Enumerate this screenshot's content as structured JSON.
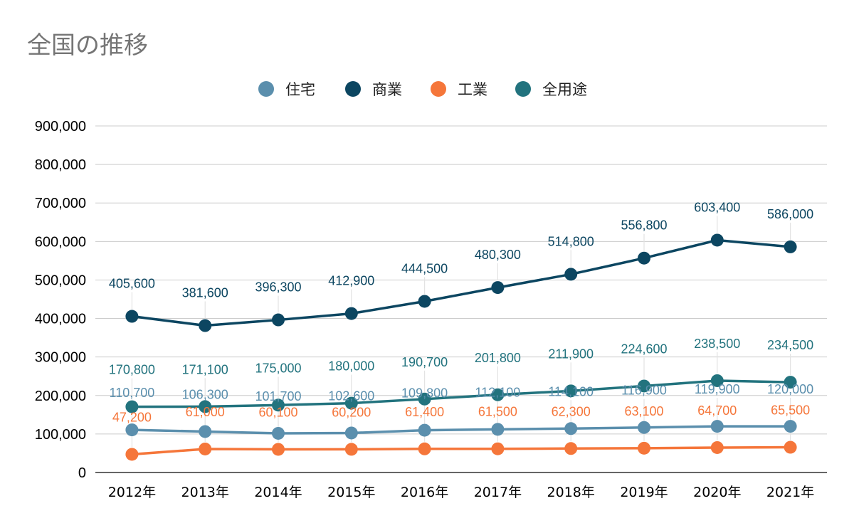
{
  "chart_data": {
    "type": "line",
    "title": "全国の推移",
    "xlabel": "",
    "ylabel": "",
    "categories": [
      "2012年",
      "2013年",
      "2014年",
      "2015年",
      "2016年",
      "2017年",
      "2018年",
      "2019年",
      "2020年",
      "2021年"
    ],
    "ylim": [
      0,
      900000
    ],
    "yticks": [
      "0",
      "100,000",
      "200,000",
      "300,000",
      "400,000",
      "500,000",
      "600,000",
      "700,000",
      "800,000",
      "900,000"
    ],
    "grid": true,
    "legend_position": "top",
    "series": [
      {
        "name": "住宅",
        "color": "#5b8fad",
        "values": [
          110700,
          106300,
          101700,
          102600,
          109800,
          112100,
          114100,
          116900,
          119900,
          120000
        ],
        "labels": [
          "110,700",
          "106,300",
          "101,700",
          "102,600",
          "109,800",
          "112,100",
          "114,100",
          "116,900",
          "119,900",
          "120,000"
        ]
      },
      {
        "name": "商業",
        "color": "#0c4661",
        "values": [
          405600,
          381600,
          396300,
          412900,
          444500,
          480300,
          514800,
          556800,
          603400,
          586000
        ],
        "labels": [
          "405,600",
          "381,600",
          "396,300",
          "412,900",
          "444,500",
          "480,300",
          "514,800",
          "556,800",
          "603,400",
          "586,000"
        ]
      },
      {
        "name": "工業",
        "color": "#f5763a",
        "values": [
          47200,
          61000,
          60100,
          60200,
          61400,
          61500,
          62300,
          63100,
          64700,
          65500
        ],
        "labels": [
          "47,200",
          "61,000",
          "60,100",
          "60,200",
          "61,400",
          "61,500",
          "62,300",
          "63,100",
          "64,700",
          "65,500"
        ]
      },
      {
        "name": "全用途",
        "color": "#22737e",
        "values": [
          170800,
          171100,
          175000,
          180000,
          190700,
          201800,
          211900,
          224600,
          238500,
          234500
        ],
        "labels": [
          "170,800",
          "171,100",
          "175,000",
          "180,000",
          "190,700",
          "201,800",
          "211,900",
          "224,600",
          "238,500",
          "234,500"
        ]
      }
    ]
  }
}
